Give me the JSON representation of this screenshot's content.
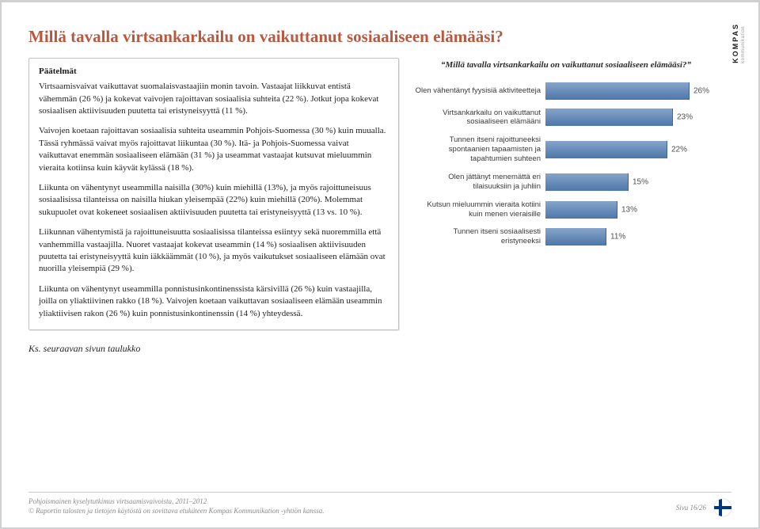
{
  "logo": {
    "name": "KOMPAS",
    "sub": "kommunikation"
  },
  "title": "Millä tavalla virtsankarkailu on vaikuttanut sosiaaliseen elämääsi?",
  "panel": {
    "heading": "Päätelmät",
    "p1": "Virtsaamisvaivat vaikuttavat suomalaisvastaajiin monin tavoin. Vastaajat liikkuvat entistä vähemmän (26 %) ja kokevat vaivojen rajoittavan sosiaalisia suhteita (22 %). Jotkut jopa kokevat sosiaalisen aktiivisuuden puutetta tai eristyneisyyttä (11 %).",
    "p2": "Vaivojen koetaan rajoittavan sosiaalisia suhteita useammin Pohjois-Suomessa (30 %) kuin muualla. Tässä ryhmässä vaivat myös rajoittavat liikuntaa (30 %). Itä- ja Pohjois-Suomessa vaivat vaikuttavat enemmän sosiaaliseen elämään (31 %) ja useammat vastaajat kutsuvat mieluummin vieraita kotiinsa kuin käyvät kylässä (18 %).",
    "p3": "Liikunta on vähentynyt useammilla naisilla (30%) kuin miehillä (13%), ja myös rajoittuneisuus sosiaalisissa tilanteissa on naisilla hiukan yleisempää (22%) kuin miehillä (20%). Molemmat sukupuolet ovat kokeneet sosiaalisen aktiivisuuden puutetta tai eristyneisyyttä (13 vs. 10 %).",
    "p4": "Liikunnan vähentymistä ja rajoittuneisuutta sosiaalisissa tilanteissa esiintyy sekä nuoremmilla että vanhemmilla vastaajilla. Nuoret vastaajat kokevat useammin (14 %) sosiaalisen aktiivisuuden puutetta tai eristyneisyyttä kuin iäkkäämmät (10 %), ja myös vaikutukset sosiaaliseen elämään ovat nuorilla yleisempiä (29 %).",
    "p5": "Liikunta on vähentynyt useammilla ponnistusinkontinenssista kärsivillä (26 %) kuin vastaajilla, joilla on yliaktiivinen rakko (18 %). Vaivojen koetaan vaikuttavan sosiaaliseen elämään useammin yliaktiivisen rakon (26 %) kuin ponnistusinkontinenssin (14 %) yhteydessä."
  },
  "ref_note": "Ks. seuraavan sivun taulukko",
  "chart": {
    "title": "“Millä tavalla virtsankarkailu on vaikuttanut sosiaaliseen elämääsi?”",
    "type": "bar",
    "max": 30,
    "bar_color_top": "#86a4c9",
    "bar_color_bottom": "#4d77aa",
    "label_fontsize": 9.5,
    "value_fontsize": 10,
    "items": [
      {
        "label": "Olen vähentänyt fyysisiä aktiviteetteja",
        "value": 26,
        "display": "26%"
      },
      {
        "label": "Virtsankarkailu on vaikuttanut sosiaaliseen elämääni",
        "value": 23,
        "display": "23%"
      },
      {
        "label": "Tunnen itseni rajoittuneeksi spontaanien tapaamisten ja tapahtumien suhteen",
        "value": 22,
        "display": "22%"
      },
      {
        "label": "Olen jättänyt menemättä eri tilaisuuksiin ja juhliin",
        "value": 15,
        "display": "15%"
      },
      {
        "label": "Kutsun mieluummin vieraita kotiini kuin menen vieraisille",
        "value": 13,
        "display": "13%"
      },
      {
        "label": "Tunnen itseni sosiaalisesti eristyneeksi",
        "value": 11,
        "display": "11%"
      }
    ]
  },
  "footer": {
    "line1": "Pohjoismainen kyselytutkimus virtsaamisvaivoista, 2011–2012",
    "line2": "© Raportin tulosten ja tietojen käytöstä on sovittava etukäteen Kompas Kommunikation -yhtiön kanssa.",
    "page": "Sivu 16/26"
  }
}
